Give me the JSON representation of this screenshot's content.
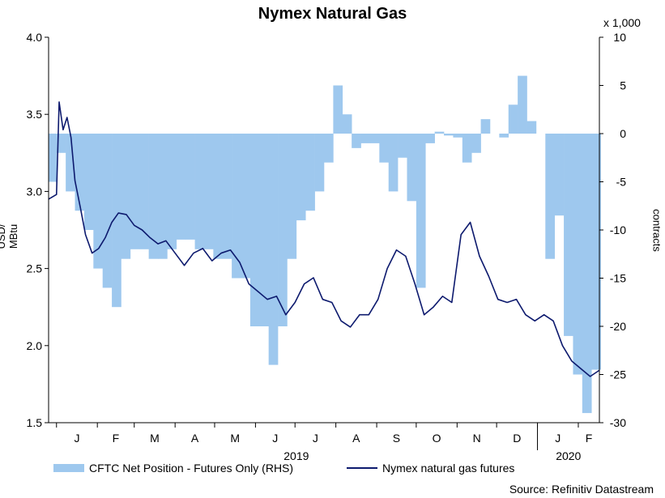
{
  "chart_data": {
    "type": "line",
    "title": "Nymex Natural Gas",
    "ylabel": "USD/ MBtu",
    "y2label": "contracts",
    "y2_units_note": "x 1,000",
    "ylim": [
      1.5,
      4.0
    ],
    "y2lim": [
      -30,
      10
    ],
    "yticks": [
      "1.5",
      "2.0",
      "2.5",
      "3.0",
      "3.5",
      "4.0"
    ],
    "y2ticks": [
      "-30",
      "-25",
      "-20",
      "-15",
      "-10",
      "-5",
      "0",
      "5",
      "10"
    ],
    "x_month_labels": [
      "J",
      "F",
      "M",
      "A",
      "M",
      "J",
      "J",
      "A",
      "S",
      "O",
      "N",
      "D",
      "J",
      "F"
    ],
    "x_year_labels": [
      "2019",
      "2020"
    ],
    "x_start": "2018-12-26",
    "x_end": "2020-02-17",
    "grid": false,
    "legend_placement": "bottom",
    "source": "Source: Refinitiv Datastream",
    "colors": {
      "area": "#9ec8ee",
      "line": "#0d1a6e"
    },
    "series": [
      {
        "name": "CFTC Net Position - Futures Only (RHS)",
        "style": "step-area",
        "axis": "right",
        "x": [
          "2018-12-26",
          "2019-01-01",
          "2019-01-08",
          "2019-01-15",
          "2019-01-22",
          "2019-01-29",
          "2019-02-05",
          "2019-02-12",
          "2019-02-19",
          "2019-02-26",
          "2019-03-05",
          "2019-03-12",
          "2019-03-19",
          "2019-03-26",
          "2019-04-02",
          "2019-04-09",
          "2019-04-16",
          "2019-04-23",
          "2019-04-30",
          "2019-05-07",
          "2019-05-14",
          "2019-05-21",
          "2019-05-28",
          "2019-06-04",
          "2019-06-11",
          "2019-06-18",
          "2019-06-25",
          "2019-07-02",
          "2019-07-09",
          "2019-07-16",
          "2019-07-23",
          "2019-07-30",
          "2019-08-06",
          "2019-08-13",
          "2019-08-20",
          "2019-08-27",
          "2019-09-03",
          "2019-09-10",
          "2019-09-17",
          "2019-09-24",
          "2019-10-01",
          "2019-10-08",
          "2019-10-15",
          "2019-10-22",
          "2019-10-29",
          "2019-11-05",
          "2019-11-12",
          "2019-11-19",
          "2019-11-26",
          "2019-12-03",
          "2019-12-10",
          "2019-12-17",
          "2019-12-24",
          "2019-12-31",
          "2020-01-07",
          "2020-01-14",
          "2020-01-21",
          "2020-01-28",
          "2020-02-04",
          "2020-02-11"
        ],
        "values": [
          -5,
          -2,
          -6,
          -8,
          -10,
          -14,
          -16,
          -18,
          -13,
          -12,
          -12,
          -13,
          -13,
          -12,
          -11,
          -11,
          -12,
          -12,
          -13,
          -13,
          -15,
          -15,
          -20,
          -20,
          -24,
          -20,
          -13,
          -9,
          -8,
          -6,
          -3,
          5,
          2,
          -1.5,
          -1,
          -1,
          -3,
          -6,
          -2.5,
          -7,
          -16,
          -1,
          0.2,
          -0.2,
          -0.4,
          -3,
          -2,
          1.5,
          0,
          -0.4,
          3,
          6,
          1.3,
          0,
          -13,
          -8.5,
          -21,
          -25,
          -29,
          -24.5
        ]
      },
      {
        "name": "Nymex natural gas futures",
        "style": "line",
        "axis": "left",
        "x": [
          "2018-12-26",
          "2019-01-01",
          "2019-01-03",
          "2019-01-06",
          "2019-01-09",
          "2019-01-12",
          "2019-01-15",
          "2019-01-19",
          "2019-01-23",
          "2019-01-28",
          "2019-02-02",
          "2019-02-07",
          "2019-02-12",
          "2019-02-17",
          "2019-02-23",
          "2019-03-01",
          "2019-03-07",
          "2019-03-13",
          "2019-03-19",
          "2019-03-25",
          "2019-04-01",
          "2019-04-08",
          "2019-04-15",
          "2019-04-22",
          "2019-04-29",
          "2019-05-06",
          "2019-05-13",
          "2019-05-20",
          "2019-05-27",
          "2019-06-03",
          "2019-06-10",
          "2019-06-17",
          "2019-06-24",
          "2019-07-01",
          "2019-07-08",
          "2019-07-15",
          "2019-07-22",
          "2019-07-29",
          "2019-08-05",
          "2019-08-12",
          "2019-08-19",
          "2019-08-26",
          "2019-09-02",
          "2019-09-09",
          "2019-09-16",
          "2019-09-23",
          "2019-09-30",
          "2019-10-07",
          "2019-10-14",
          "2019-10-21",
          "2019-10-28",
          "2019-11-04",
          "2019-11-11",
          "2019-11-18",
          "2019-11-25",
          "2019-12-02",
          "2019-12-09",
          "2019-12-16",
          "2019-12-23",
          "2019-12-30",
          "2020-01-06",
          "2020-01-13",
          "2020-01-20",
          "2020-01-27",
          "2020-02-03",
          "2020-02-10",
          "2020-02-17"
        ],
        "values": [
          2.95,
          2.98,
          3.58,
          3.4,
          3.48,
          3.35,
          3.07,
          2.9,
          2.72,
          2.6,
          2.63,
          2.7,
          2.8,
          2.86,
          2.85,
          2.78,
          2.75,
          2.7,
          2.66,
          2.68,
          2.6,
          2.52,
          2.6,
          2.63,
          2.55,
          2.6,
          2.62,
          2.54,
          2.4,
          2.35,
          2.3,
          2.32,
          2.2,
          2.28,
          2.4,
          2.44,
          2.3,
          2.28,
          2.16,
          2.12,
          2.2,
          2.2,
          2.3,
          2.5,
          2.62,
          2.58,
          2.4,
          2.2,
          2.25,
          2.32,
          2.28,
          2.72,
          2.8,
          2.58,
          2.45,
          2.3,
          2.28,
          2.3,
          2.2,
          2.16,
          2.2,
          2.16,
          2.0,
          1.9,
          1.85,
          1.8,
          1.84
        ]
      }
    ]
  }
}
